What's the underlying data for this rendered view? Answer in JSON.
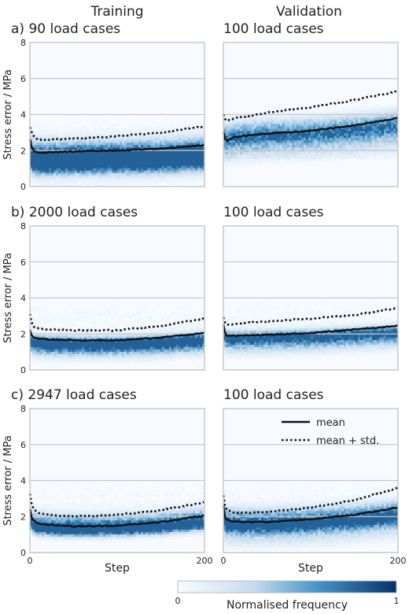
{
  "column_titles": [
    "Training",
    "Validation"
  ],
  "colorbar": {
    "label": "Normalised frequency",
    "min_label": "0",
    "max_label": "1",
    "color_low": "#f7fbff",
    "color_high": "#08306b"
  },
  "legend": {
    "mean": "mean",
    "mean_std": "mean + std."
  },
  "chart_data": [
    {
      "type": "heatmap",
      "panel_label": "a) 90 load cases",
      "ylabel": "Stress error / MPa",
      "xlabel": "",
      "xlim": [
        0,
        200
      ],
      "ylim": [
        0,
        8
      ],
      "y_ticks": [
        "0",
        "2",
        "4",
        "6",
        "8"
      ],
      "x_ticks": [],
      "grid": true,
      "x": [
        0,
        2,
        5,
        10,
        20,
        50,
        100,
        150,
        200
      ],
      "mean": [
        2.6,
        2.2,
        1.95,
        1.9,
        1.9,
        1.95,
        2.0,
        2.1,
        2.3
      ],
      "mean_std": [
        3.3,
        3.0,
        2.75,
        2.6,
        2.6,
        2.65,
        2.8,
        3.0,
        3.35
      ],
      "density_bands": [
        [
          1.0,
          0.35
        ],
        [
          1.5,
          0.75
        ],
        [
          2.0,
          0.5
        ],
        [
          1.3,
          0.55
        ]
      ]
    },
    {
      "type": "heatmap",
      "panel_label": "100 load cases",
      "xlabel": "",
      "xlim": [
        0,
        200
      ],
      "ylim": [
        0,
        8
      ],
      "grid": true,
      "x": [
        0,
        2,
        5,
        10,
        20,
        50,
        100,
        150,
        200
      ],
      "mean": [
        3.0,
        2.6,
        2.55,
        2.7,
        2.8,
        2.95,
        3.1,
        3.4,
        3.8
      ],
      "mean_std": [
        4.0,
        3.7,
        3.65,
        3.75,
        3.85,
        4.1,
        4.4,
        4.8,
        5.3
      ],
      "density_bands": [
        [
          2.7,
          0.55
        ],
        [
          3.2,
          0.5
        ],
        [
          2.2,
          0.45
        ]
      ]
    },
    {
      "type": "heatmap",
      "panel_label": "b) 2000 load cases",
      "ylabel": "Stress error / MPa",
      "xlabel": "",
      "xlim": [
        0,
        200
      ],
      "ylim": [
        0,
        8
      ],
      "y_ticks": [
        "0",
        "2",
        "4",
        "6",
        "8"
      ],
      "x_ticks": [],
      "grid": true,
      "x": [
        0,
        2,
        5,
        10,
        20,
        50,
        100,
        150,
        200
      ],
      "mean": [
        2.2,
        1.9,
        1.8,
        1.75,
        1.7,
        1.65,
        1.65,
        1.8,
        2.05
      ],
      "mean_std": [
        3.1,
        2.6,
        2.4,
        2.3,
        2.25,
        2.2,
        2.2,
        2.45,
        2.85
      ],
      "density_bands": [
        [
          1.5,
          0.9
        ],
        [
          1.2,
          0.6
        ]
      ]
    },
    {
      "type": "heatmap",
      "panel_label": "100 load cases",
      "xlabel": "",
      "xlim": [
        0,
        200
      ],
      "ylim": [
        0,
        8
      ],
      "grid": true,
      "x": [
        0,
        2,
        5,
        10,
        20,
        50,
        100,
        150,
        200
      ],
      "mean": [
        2.5,
        2.0,
        1.9,
        1.9,
        1.9,
        1.95,
        2.05,
        2.25,
        2.45
      ],
      "mean_std": [
        2.9,
        2.6,
        2.5,
        2.55,
        2.6,
        2.7,
        2.85,
        3.05,
        3.45
      ],
      "density_bands": [
        [
          1.8,
          0.85
        ],
        [
          1.4,
          0.5
        ]
      ]
    },
    {
      "type": "heatmap",
      "panel_label": "c) 2947 load cases",
      "ylabel": "Stress error / MPa",
      "xlabel": "Step",
      "xlim": [
        0,
        200
      ],
      "ylim": [
        0,
        8
      ],
      "y_ticks": [
        "0",
        "2",
        "4",
        "6",
        "8"
      ],
      "x_ticks": [
        "0",
        "200"
      ],
      "grid": true,
      "x": [
        0,
        2,
        5,
        10,
        20,
        50,
        100,
        150,
        200
      ],
      "mean": [
        2.4,
        1.9,
        1.75,
        1.6,
        1.55,
        1.45,
        1.5,
        1.7,
        2.05
      ],
      "mean_std": [
        3.3,
        2.65,
        2.4,
        2.2,
        2.1,
        2.0,
        2.1,
        2.35,
        2.8
      ],
      "density_bands": [
        [
          1.3,
          1.0
        ],
        [
          1.7,
          0.6
        ]
      ]
    },
    {
      "type": "heatmap",
      "panel_label": "100 load cases",
      "xlabel": "Step",
      "xlim": [
        0,
        200
      ],
      "ylim": [
        0,
        8
      ],
      "x_ticks": [
        "0",
        "200"
      ],
      "grid": true,
      "x": [
        0,
        2,
        5,
        10,
        20,
        50,
        100,
        150,
        200
      ],
      "mean": [
        2.6,
        1.9,
        1.8,
        1.75,
        1.7,
        1.7,
        1.85,
        2.1,
        2.5
      ],
      "mean_std": [
        3.2,
        2.5,
        2.35,
        2.25,
        2.2,
        2.25,
        2.5,
        2.9,
        3.6
      ],
      "density_bands": [
        [
          1.5,
          0.8
        ],
        [
          2.0,
          0.55
        ],
        [
          1.1,
          0.45
        ]
      ]
    }
  ]
}
